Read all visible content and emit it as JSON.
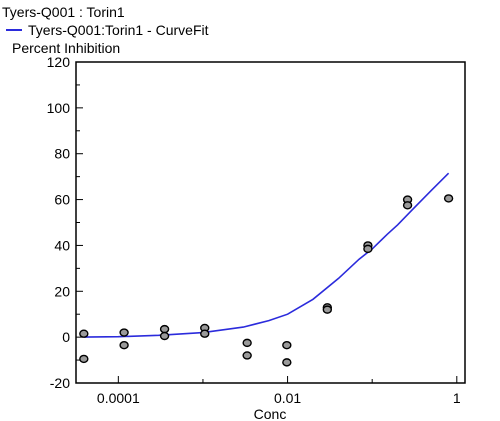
{
  "chart_data": {
    "type": "scatter",
    "title": "Tyers-Q001  : Torin1",
    "legend": [
      {
        "label": "Tyers-Q001:Torin1 - CurveFit",
        "color": "#2b2bdc"
      }
    ],
    "ylabel": "Percent Inhibition",
    "xlabel": "Conc",
    "x_scale": "log10",
    "xlim": [
      3.16e-05,
      1.25
    ],
    "ylim": [
      -20,
      120
    ],
    "x_ticks": [
      0.0001,
      0.01,
      1
    ],
    "x_tick_labels": [
      "0.0001",
      "0.01",
      "1"
    ],
    "y_ticks": [
      -20,
      0,
      20,
      40,
      60,
      80,
      100,
      120
    ],
    "y_tick_labels": [
      "-20",
      "0",
      "20",
      "40",
      "60",
      "80",
      "100",
      "120"
    ],
    "series": [
      {
        "kind": "points",
        "marker_fill": "#9a9a9a",
        "points": [
          {
            "x": 3.91e-05,
            "y": 1.5
          },
          {
            "x": 3.91e-05,
            "y": -9.5
          },
          {
            "x": 0.000117,
            "y": 2
          },
          {
            "x": 0.000117,
            "y": -3.5
          },
          {
            "x": 0.000352,
            "y": 3.5
          },
          {
            "x": 0.000352,
            "y": 0.5
          },
          {
            "x": 0.00105,
            "y": 4
          },
          {
            "x": 0.00105,
            "y": 1.5
          },
          {
            "x": 0.00333,
            "y": -2.5
          },
          {
            "x": 0.00333,
            "y": -8
          },
          {
            "x": 0.0098,
            "y": -3.5
          },
          {
            "x": 0.0098,
            "y": -11
          },
          {
            "x": 0.0295,
            "y": 13
          },
          {
            "x": 0.0295,
            "y": 12
          },
          {
            "x": 0.089,
            "y": 40
          },
          {
            "x": 0.089,
            "y": 38.5
          },
          {
            "x": 0.262,
            "y": 60
          },
          {
            "x": 0.262,
            "y": 57.5
          },
          {
            "x": 0.8,
            "y": 60.5
          }
        ]
      },
      {
        "kind": "curve",
        "color": "#2b2bdc",
        "x": [
          3.91e-05,
          0.0001,
          0.0003,
          0.001,
          0.003,
          0.006,
          0.01,
          0.02,
          0.04,
          0.07,
          0.1,
          0.15,
          0.2,
          0.3,
          0.5,
          0.8
        ],
        "y": [
          0,
          0.2,
          0.8,
          2,
          4.4,
          7.2,
          10,
          16.5,
          25.6,
          34,
          38.5,
          44.8,
          49,
          55.7,
          64,
          71.5
        ]
      }
    ]
  }
}
